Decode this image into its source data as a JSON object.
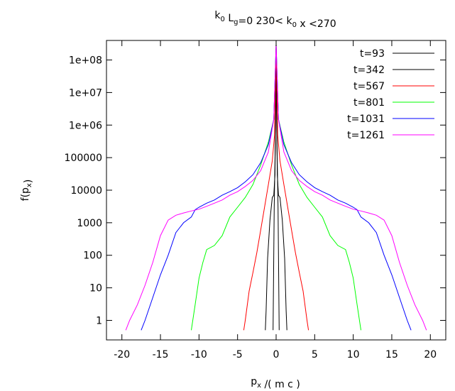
{
  "chart_data": {
    "type": "line",
    "title": {
      "parts": [
        {
          "t": "k",
          "sub": "0"
        },
        {
          "t": " L",
          "sub": "g"
        },
        {
          "t": "=0  230< k",
          "sub": "0"
        },
        {
          "t": " x <270",
          "sub": ""
        }
      ]
    },
    "xlabel": {
      "parts": [
        {
          "t": "p",
          "sub": "x"
        },
        {
          "t": " /( m c )",
          "sub": ""
        }
      ]
    },
    "ylabel": {
      "parts": [
        {
          "t": "f(p",
          "sub": "x"
        },
        {
          "t": ")",
          "sub": ""
        }
      ]
    },
    "y_scale": "log",
    "xlim": [
      -22,
      22
    ],
    "ylim_exponent": [
      -0.6,
      8.6
    ],
    "x_ticks": [
      -20,
      -15,
      -10,
      -5,
      0,
      5,
      10,
      15,
      20
    ],
    "y_ticks": [
      {
        "value": 1,
        "label": "1"
      },
      {
        "value": 10,
        "label": "10"
      },
      {
        "value": 100,
        "label": "100"
      },
      {
        "value": 1000,
        "label": "1000"
      },
      {
        "value": 10000,
        "label": "10000"
      },
      {
        "value": 100000,
        "label": "100000"
      },
      {
        "value": 1000000,
        "label": "1e+06"
      },
      {
        "value": 10000000,
        "label": "1e+07"
      },
      {
        "value": 100000000,
        "label": "1e+08"
      }
    ],
    "grid": false,
    "legend_position": "top-right",
    "series": [
      {
        "name": "t=93",
        "color": "#000000",
        "x": [
          -0.4,
          -0.25,
          -0.15,
          -0.08,
          0,
          0.08,
          0.15,
          0.25,
          0.4
        ],
        "y": [
          0.5,
          3000,
          80000,
          700000,
          300000000,
          700000,
          80000,
          3000,
          0.5
        ]
      },
      {
        "name": "t=342",
        "color": "#000000",
        "x": [
          -1.4,
          -1.3,
          -1.1,
          -0.8,
          -0.5,
          -0.3,
          -0.15,
          0,
          0.15,
          0.3,
          0.5,
          0.8,
          1.1,
          1.3,
          1.4
        ],
        "y": [
          0.5,
          2,
          80,
          1200,
          6000,
          7000,
          30000,
          300000000,
          30000,
          7000,
          6000,
          1200,
          80,
          2,
          0.5
        ]
      },
      {
        "name": "t=567",
        "color": "#ff0000",
        "x": [
          -4.2,
          -4,
          -3.5,
          -3,
          -2.5,
          -2,
          -1.5,
          -1,
          -0.5,
          -0.2,
          0,
          0.2,
          0.5,
          1,
          1.5,
          2,
          2.5,
          3,
          3.5,
          4,
          4.2
        ],
        "y": [
          0.5,
          1,
          8,
          30,
          120,
          600,
          3000,
          15000,
          80000,
          500000,
          300000000,
          500000,
          80000,
          15000,
          3000,
          600,
          120,
          30,
          8,
          1,
          0.5
        ]
      },
      {
        "name": "t=801",
        "color": "#00ff00",
        "x": [
          -11,
          -10.5,
          -10,
          -9.5,
          -9,
          -8,
          -7,
          -6,
          -5,
          -4,
          -3,
          -2,
          -1,
          -0.3,
          0,
          0.3,
          1,
          2,
          3,
          4,
          5,
          6,
          7,
          8,
          9,
          9.5,
          10,
          10.5,
          11
        ],
        "y": [
          0.5,
          3,
          20,
          60,
          150,
          200,
          400,
          1500,
          3000,
          6000,
          15000,
          60000,
          300000,
          1500000,
          300000000,
          1500000,
          300000,
          60000,
          15000,
          6000,
          3000,
          1500,
          400,
          200,
          150,
          60,
          20,
          3,
          0.5
        ]
      },
      {
        "name": "t=1031",
        "color": "#0000ff",
        "x": [
          -17.5,
          -17,
          -16,
          -15,
          -14,
          -13,
          -12,
          -11,
          -10.5,
          -10,
          -9,
          -8,
          -7,
          -6,
          -5,
          -4,
          -3,
          -2,
          -1,
          -0.3,
          0,
          0.3,
          1,
          2,
          3,
          4,
          5,
          6,
          7,
          8,
          9,
          10,
          10.5,
          11,
          12,
          13,
          14,
          15,
          16,
          17,
          17.5
        ],
        "y": [
          0.5,
          1,
          5,
          25,
          100,
          500,
          1000,
          1500,
          2500,
          3000,
          4000,
          5000,
          7000,
          9000,
          12000,
          18000,
          30000,
          70000,
          250000,
          1500000,
          300000000,
          1500000,
          250000,
          70000,
          30000,
          18000,
          12000,
          9000,
          7000,
          5000,
          4000,
          3000,
          2500,
          1500,
          1000,
          500,
          100,
          25,
          5,
          1,
          0.5
        ]
      },
      {
        "name": "t=1261",
        "color": "#ff00ff",
        "x": [
          -19.5,
          -19,
          -18,
          -17,
          -16,
          -15,
          -14,
          -13,
          -12,
          -11,
          -10,
          -9,
          -8,
          -7,
          -6,
          -5,
          -4,
          -3,
          -2,
          -1,
          -0.3,
          0,
          0.3,
          1,
          2,
          3,
          4,
          5,
          6,
          7,
          8,
          9,
          10,
          11,
          12,
          13,
          14,
          15,
          16,
          17,
          18,
          19,
          19.5
        ],
        "y": [
          0.5,
          1,
          3,
          12,
          60,
          400,
          1200,
          1700,
          2000,
          2300,
          2600,
          3200,
          4000,
          5000,
          7000,
          9000,
          13000,
          20000,
          40000,
          150000,
          1500000,
          300000000,
          1500000,
          150000,
          40000,
          20000,
          13000,
          9000,
          7000,
          5000,
          4000,
          3200,
          2600,
          2300,
          2000,
          1700,
          1200,
          400,
          60,
          12,
          3,
          1,
          0.5
        ]
      }
    ]
  }
}
